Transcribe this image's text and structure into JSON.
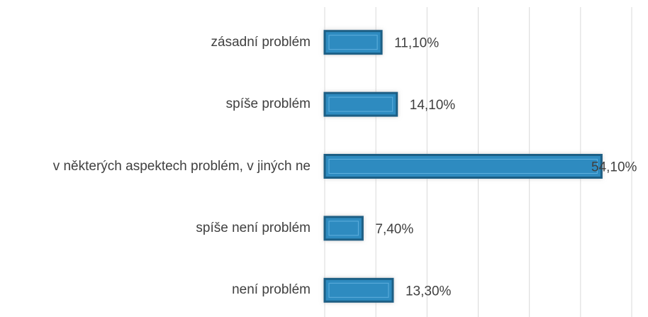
{
  "chart_data": {
    "type": "bar",
    "orientation": "horizontal",
    "categories": [
      "zásadní problém",
      "spíše problém",
      "v některých aspektech problém, v jiných ne",
      "spíše není problém",
      "není problém"
    ],
    "values": [
      11.1,
      14.1,
      54.1,
      7.4,
      13.3
    ],
    "value_labels": [
      "11,10%",
      "14,10%",
      "54,10%",
      "7,40%",
      "13,30%"
    ],
    "color": "#2e8bc0",
    "xlim": [
      0,
      60
    ],
    "xticks": [
      0,
      10,
      20,
      30,
      40,
      50,
      60
    ],
    "grid": true
  }
}
